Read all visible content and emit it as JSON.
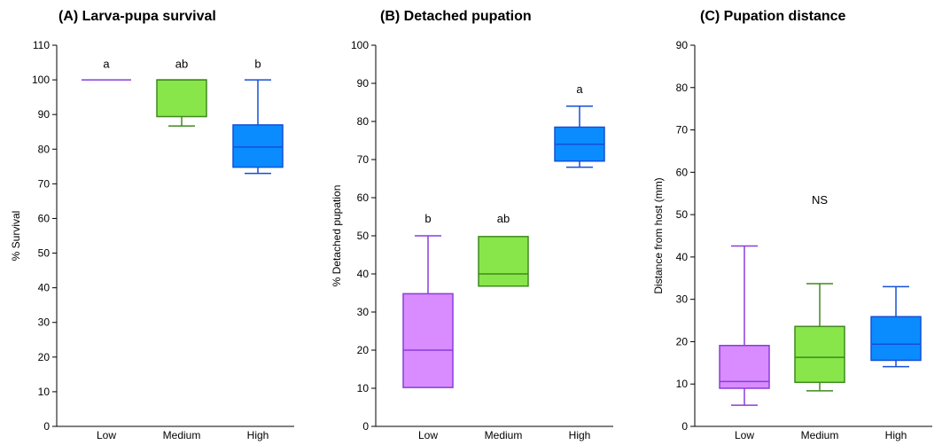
{
  "chart_data": [
    {
      "type": "box",
      "title": "(A) Larva-pupa survival",
      "ylabel": "% Survival",
      "ylim": [
        0,
        110
      ],
      "yticks": [
        0,
        10,
        20,
        30,
        40,
        50,
        60,
        70,
        80,
        90,
        100,
        110
      ],
      "categories": [
        "Low",
        "Medium",
        "High"
      ],
      "colors": [
        "#d88cff",
        "#88e64b",
        "#0a8cff"
      ],
      "stroke_colors": [
        "#8a3ddb",
        "#3f8a1d",
        "#1450d6"
      ],
      "boxes": [
        {
          "min": 100,
          "q1": 100,
          "median": 100,
          "q3": 100,
          "max": 100
        },
        {
          "min": 86.7,
          "q1": 89.4,
          "median": 100,
          "q3": 100,
          "max": 100
        },
        {
          "min": 73,
          "q1": 74.8,
          "median": 80.6,
          "q3": 87,
          "max": 100
        }
      ],
      "annotations": [
        "a",
        "ab",
        "b"
      ],
      "annotation_y": [
        103.5,
        103.5,
        103.5
      ]
    },
    {
      "type": "box",
      "title": "(B) Detached pupation",
      "ylabel": "% Detached pupation",
      "ylim": [
        0,
        100
      ],
      "yticks": [
        0,
        10,
        20,
        30,
        40,
        50,
        60,
        70,
        80,
        90,
        100
      ],
      "categories": [
        "Low",
        "Medium",
        "High"
      ],
      "colors": [
        "#d88cff",
        "#88e64b",
        "#0a8cff"
      ],
      "stroke_colors": [
        "#8a3ddb",
        "#3f8a1d",
        "#1450d6"
      ],
      "boxes": [
        {
          "min": 10.2,
          "q1": 10.2,
          "median": 20,
          "q3": 34.8,
          "max": 50
        },
        {
          "min": 36.8,
          "q1": 36.8,
          "median": 40,
          "q3": 49.8,
          "max": 49.8
        },
        {
          "min": 68,
          "q1": 69.6,
          "median": 74,
          "q3": 78.5,
          "max": 84
        }
      ],
      "annotations": [
        "b",
        "ab",
        "a"
      ],
      "annotation_y": [
        53.5,
        53.5,
        87.5
      ]
    },
    {
      "type": "box",
      "title": "(C) Pupation distance",
      "ylabel": "Distance from host (mm)",
      "ylim": [
        0,
        90
      ],
      "yticks": [
        0,
        10,
        20,
        30,
        40,
        50,
        60,
        70,
        80,
        90
      ],
      "categories": [
        "Low",
        "Medium",
        "High"
      ],
      "colors": [
        "#d88cff",
        "#88e64b",
        "#0a8cff"
      ],
      "stroke_colors": [
        "#8a3ddb",
        "#3f8a1d",
        "#1450d6"
      ],
      "boxes": [
        {
          "min": 5,
          "q1": 9,
          "median": 10.6,
          "q3": 19.1,
          "max": 42.6
        },
        {
          "min": 8.4,
          "q1": 10.4,
          "median": 16.3,
          "q3": 23.6,
          "max": 33.7
        },
        {
          "min": 14.1,
          "q1": 15.6,
          "median": 19.4,
          "q3": 25.9,
          "max": 33
        }
      ],
      "annotations": [
        "NS"
      ],
      "annotation_y": [
        52.5
      ]
    }
  ]
}
